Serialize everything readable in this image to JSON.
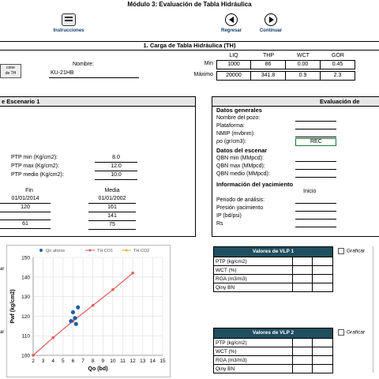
{
  "module_title": "Módulo 3: Evaluación de Tabla Hidráulica",
  "toolbar": {
    "instructions_label": "Instrucciones",
    "back_label": "Regresar",
    "continue_label": "Continuar"
  },
  "section1": {
    "title": "1.  Carga de Tabla Hidráulica (TH)",
    "left_button_label": "cone\nde TH",
    "name_label": "Nombre:",
    "name_value": "KU-21HB",
    "columns": [
      "LIQ",
      "THP",
      "WCT",
      "GOR"
    ],
    "rows": [
      {
        "label": "Min",
        "values": [
          "1000",
          "86",
          "0.00",
          "0.45"
        ]
      },
      {
        "label": "Máximo",
        "values": [
          "20000",
          "341.8",
          "0.9",
          "2.3"
        ]
      }
    ]
  },
  "scenario": {
    "title": "e Escenario 1",
    "ptp": [
      {
        "label": "PTP min (Kg/cm2):",
        "value": "8.0"
      },
      {
        "label": "PTP max (Kg/cm2):",
        "value": "12.0"
      },
      {
        "label": "PTP medio (Kg/cm2):",
        "value": "10.0"
      }
    ],
    "fin_label": "Fin",
    "media_label": "Media",
    "fin_values": [
      "01/01/2014",
      "120",
      "",
      "61"
    ],
    "media_values": [
      "01/01/2002",
      "161",
      "141",
      "75"
    ]
  },
  "evaluation": {
    "title": "Evaluación de",
    "general_header": "Datos generales",
    "general_fields": [
      "Nombre del pozo:",
      "Plataforma:",
      "NMIP (mvbnm):",
      "ρo (gr/cm3):"
    ],
    "rho_value": "REC",
    "scenario_header": "Datos del escenar",
    "scenario_fields": [
      "QBN min (MMpcd):",
      "QBN max (MMpcd):",
      "QBN medio (MMpcd):"
    ],
    "reservoir_header": "Información del yacimiento",
    "inicio_label": "Inicio",
    "reservoir_fields": [
      "Periodo de análisis:",
      "Presión yacimiento",
      "IP (bd/psi)",
      "Rs"
    ]
  },
  "vlp1": {
    "title": "Valores de VLP 1",
    "rows": [
      "PTP (kg/cm2)",
      "WCT (%)",
      "RGA (m3/m3)",
      "Qiny BN"
    ],
    "graph_label": "Graficar"
  },
  "vlp2": {
    "title": "Valores de VLP 2",
    "rows": [
      "PTP (kg/cm2)",
      "WCT (%)",
      "RGA (m3/m3)",
      "Qiny BN"
    ],
    "graph_label": "Graficar"
  },
  "side_labels": {
    "top": "ar",
    "bottom": "ar"
  },
  "chart_data": {
    "type": "scatter",
    "xlabel": "Qo (bd)",
    "ylabel": "Pwf (kg/cm2)",
    "xlim": [
      2,
      15
    ],
    "ylim": [
      100,
      150
    ],
    "x_ticks": [
      2,
      3,
      4,
      5,
      6,
      7,
      8,
      9,
      10,
      11,
      12,
      13,
      14,
      15
    ],
    "y_ticks": [
      100,
      110,
      120,
      130,
      140,
      150
    ],
    "legend": [
      "Qo aforos",
      "TH CO1",
      "TH CO2"
    ],
    "colors": {
      "aforos": "#1f5fa8",
      "co1": "#e15a5a",
      "co2": "#e0b030"
    },
    "aforos": [
      [
        5.8,
        117.5
      ],
      [
        6.0,
        122
      ],
      [
        6.2,
        119
      ],
      [
        6.3,
        116
      ],
      [
        6.5,
        124.5
      ]
    ],
    "co1_line": [
      [
        2,
        100
      ],
      [
        4,
        109
      ],
      [
        6,
        117.5
      ],
      [
        8,
        125.5
      ],
      [
        10,
        133.5
      ],
      [
        12,
        142
      ]
    ]
  }
}
